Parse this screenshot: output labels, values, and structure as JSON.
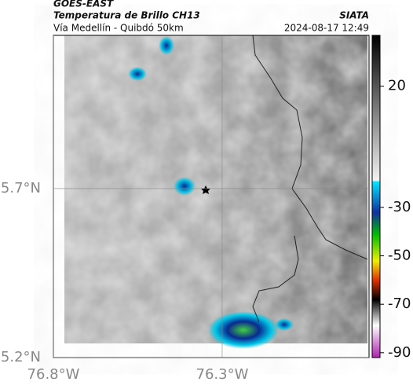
{
  "header": {
    "agency": "GOES-EAST",
    "product": "Temperatura de Brillo CH13",
    "region": "Vía Medellín - Quibdó 50km",
    "source": "SIATA",
    "datetime": "2024-08-17 12:49"
  },
  "map": {
    "xlim": [
      -76.8,
      -75.865
    ],
    "ylim": [
      5.2,
      6.153
    ],
    "xticks": [
      {
        "value": -76.8,
        "label": "76.8°W"
      },
      {
        "value": -76.3,
        "label": "76.3°W"
      }
    ],
    "yticks": [
      {
        "value": 5.2,
        "label": "5.2°N"
      },
      {
        "value": 5.7,
        "label": "5.7°N"
      }
    ]
  },
  "colorbar": {
    "lim": [
      -92,
      41
    ],
    "ticks": [
      20,
      -30,
      -50,
      -70,
      -90
    ]
  }
}
